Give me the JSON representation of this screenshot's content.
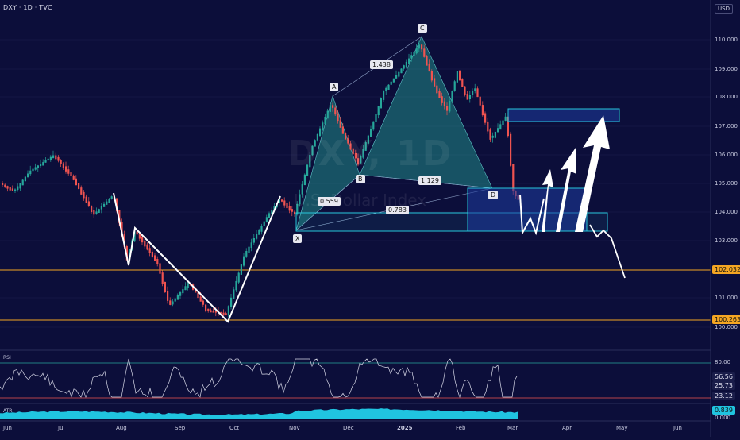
{
  "header": {
    "title": "DXY · 1D · TVC",
    "currency": "USD"
  },
  "watermark": {
    "symbol": "DXY, 1D",
    "name": "U.S. Dollar Index"
  },
  "price_axis": [
    "110.000",
    "109.000",
    "108.000",
    "107.000",
    "106.000",
    "105.000",
    "104.000",
    "103.000",
    "101.000",
    "100.000"
  ],
  "price_tags": [
    {
      "label": "102.032",
      "color": "#f5a623"
    },
    {
      "label": "100.263",
      "color": "#f5a623"
    }
  ],
  "time_axis": [
    "Jun",
    "Jul",
    "Aug",
    "Sep",
    "Oct",
    "Nov",
    "Dec",
    "2025",
    "Feb",
    "Mar",
    "Apr",
    "May",
    "Jun"
  ],
  "pattern_points": {
    "X": "X",
    "A": "A",
    "B": "B",
    "C": "C",
    "D": "D"
  },
  "ratios": {
    "xa_b": "0.559",
    "ab_c": "1.438",
    "bc_d": "1.129",
    "xa_d": "0.783"
  },
  "rsi": {
    "label": "RSI",
    "upper": "80.00",
    "v1": "56.56",
    "v2": "25.73",
    "v3": "23.12"
  },
  "atr": {
    "label": "ATR",
    "value": "0.839",
    "zero": "0.000"
  },
  "colors": {
    "bg": "#0c0e3a",
    "up": "#26a69a",
    "down": "#ef5350",
    "level": "#f5a623",
    "pattern": "#1f8a9a",
    "box": "#26c6da"
  }
}
